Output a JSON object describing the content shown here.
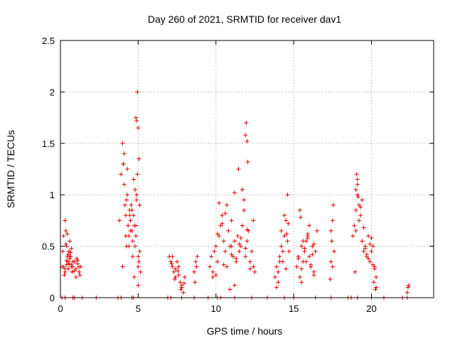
{
  "chart_data": {
    "type": "scatter",
    "title": "Day 260 of 2021, SRMTID for receiver dav1",
    "xlabel": "GPS time / hours",
    "ylabel": "SRMTID / TECUs",
    "xlim": [
      0,
      24
    ],
    "ylim": [
      0,
      2.5
    ],
    "xticks": [
      0,
      5,
      10,
      15,
      20
    ],
    "xtick_labels": [
      "0",
      "5",
      "10",
      "15",
      "20"
    ],
    "yticks": [
      0,
      0.5,
      1,
      1.5,
      2,
      2.5
    ],
    "ytick_labels": [
      "0",
      "0.5",
      "1",
      "1.5",
      "2",
      "2.5"
    ],
    "grid": true,
    "marker": "plus",
    "color": "#e00000",
    "series": [
      {
        "name": "dav1",
        "x": [
          0.1,
          0.15,
          0.2,
          0.3,
          0.35,
          0.4,
          0.45,
          0.5,
          0.55,
          0.6,
          0.65,
          0.7,
          0.75,
          0.8,
          0.3,
          0.4,
          0.5,
          0.6,
          0.7,
          0.25,
          0.35,
          0.45,
          0.55,
          0.65,
          0.2,
          0.3,
          0.4,
          0.5,
          0.6,
          0.7,
          0.8,
          0.9,
          1.0,
          1.1,
          1.2,
          1.3,
          1.0,
          1.1,
          1.2,
          0.9,
          1.05,
          1.25,
          3.8,
          3.9,
          4.0,
          4.05,
          4.1,
          4.15,
          4.2,
          4.25,
          4.3,
          4.35,
          4.4,
          4.45,
          4.5,
          4.55,
          4.6,
          4.65,
          4.7,
          4.75,
          4.8,
          4.85,
          4.9,
          4.95,
          5.0,
          5.05,
          5.1,
          4.0,
          4.2,
          4.4,
          4.6,
          4.8,
          5.0,
          4.1,
          4.3,
          4.5,
          4.7,
          4.9,
          4.05,
          4.25,
          4.45,
          4.65,
          4.85,
          4.85,
          4.9,
          4.95,
          5.0,
          5.05,
          5.1,
          5.15,
          5.0,
          4.75,
          7.0,
          7.1,
          7.2,
          7.3,
          7.4,
          7.5,
          7.6,
          7.7,
          7.8,
          7.9,
          8.0,
          7.2,
          7.4,
          7.6,
          7.8,
          7.15,
          7.35,
          7.55,
          7.75,
          7.95,
          8.6,
          8.7,
          8.8,
          8.65,
          8.75,
          9.6,
          9.7,
          9.8,
          9.9,
          10.0,
          10.1,
          10.2,
          10.3,
          10.4,
          10.5,
          10.6,
          10.7,
          10.8,
          10.9,
          11.0,
          11.1,
          11.2,
          11.3,
          11.4,
          11.5,
          11.6,
          11.7,
          11.8,
          11.9,
          12.0,
          12.1,
          12.2,
          12.3,
          12.4,
          12.5,
          9.8,
          10.1,
          10.4,
          10.7,
          11.0,
          11.3,
          11.6,
          11.9,
          12.2,
          10.0,
          10.5,
          11.0,
          11.5,
          12.0,
          10.2,
          10.6,
          11.2,
          11.8,
          12.4,
          11.45,
          11.9,
          11.95,
          12.0,
          12.05,
          11.7,
          11.2,
          10.9,
          13.8,
          13.9,
          14.0,
          14.1,
          14.2,
          14.3,
          14.4,
          14.5,
          14.6,
          14.7,
          14.0,
          14.2,
          14.4,
          14.6,
          13.9,
          14.1,
          14.3,
          14.5,
          14.55,
          14.65,
          15.2,
          15.3,
          15.4,
          15.5,
          15.6,
          15.7,
          15.8,
          15.9,
          16.0,
          16.1,
          16.2,
          16.3,
          16.4,
          16.5,
          15.4,
          15.6,
          15.8,
          16.0,
          16.2,
          15.3,
          15.5,
          15.7,
          15.9,
          16.1,
          16.3,
          15.5,
          15.9,
          16.3,
          15.45,
          17.4,
          17.45,
          17.5,
          17.55,
          17.6,
          17.4,
          17.5,
          17.35,
          18.8,
          18.9,
          19.0,
          19.1,
          19.2,
          19.3,
          19.4,
          19.5,
          19.6,
          19.7,
          19.8,
          19.9,
          20.0,
          20.1,
          20.2,
          20.3,
          19.0,
          19.2,
          19.4,
          19.6,
          19.8,
          20.0,
          20.2,
          19.1,
          19.3,
          19.5,
          19.7,
          19.9,
          20.1,
          19.0,
          19.05,
          19.1,
          19.15,
          18.95,
          20.15,
          20.25,
          20.3,
          22.3,
          22.35,
          22.4
        ],
        "y": [
          0.3,
          0.45,
          0.6,
          0.75,
          0.65,
          0.5,
          0.4,
          0.35,
          0.45,
          0.55,
          0.4,
          0.3,
          0.25,
          0.35,
          0.28,
          0.32,
          0.42,
          0.38,
          0.48,
          0.22,
          0.52,
          0.62,
          0.33,
          0.44,
          0.3,
          0.25,
          0.36,
          0.28,
          0.4,
          0.32,
          0.3,
          0.35,
          0.28,
          0.33,
          0.25,
          0.3,
          0.2,
          0.36,
          0.3,
          0.26,
          0.38,
          0.22,
          0.75,
          1.2,
          1.5,
          1.3,
          1.1,
          0.9,
          0.8,
          0.95,
          1.0,
          0.7,
          0.6,
          0.85,
          0.75,
          0.9,
          0.65,
          0.55,
          0.8,
          0.7,
          0.5,
          0.6,
          1.0,
          1.2,
          0.4,
          0.35,
          0.45,
          0.3,
          0.6,
          0.5,
          0.85,
          1.05,
          0.3,
          1.4,
          1.25,
          0.65,
          1.15,
          0.95,
          1.3,
          0.5,
          0.8,
          0.4,
          0.7,
          1.75,
          1.72,
          2.0,
          1.65,
          1.35,
          0.9,
          0.25,
          0.12,
          0.2,
          0.4,
          0.35,
          0.3,
          0.25,
          0.2,
          0.35,
          0.3,
          0.15,
          0.1,
          0.05,
          0.2,
          0.4,
          0.28,
          0.22,
          0.12,
          0.33,
          0.18,
          0.26,
          0.08,
          0.14,
          0.25,
          0.35,
          0.4,
          0.15,
          0.3,
          0.3,
          0.4,
          0.25,
          0.45,
          0.5,
          0.35,
          0.6,
          0.7,
          0.8,
          0.55,
          0.45,
          0.9,
          0.65,
          0.5,
          0.75,
          0.4,
          0.55,
          0.35,
          0.6,
          0.45,
          0.5,
          0.7,
          0.85,
          0.4,
          0.55,
          0.65,
          0.35,
          0.45,
          0.3,
          0.25,
          0.2,
          0.62,
          0.72,
          0.3,
          0.5,
          0.38,
          0.58,
          0.48,
          0.28,
          0.22,
          0.32,
          0.42,
          0.52,
          0.66,
          0.92,
          0.82,
          1.02,
          0.95,
          0.75,
          1.25,
          1.58,
          1.7,
          1.52,
          1.32,
          1.05,
          0.12,
          0.08,
          0.2,
          0.3,
          0.15,
          0.4,
          0.5,
          0.35,
          0.6,
          0.75,
          0.55,
          0.45,
          0.25,
          0.65,
          0.8,
          1.0,
          0.1,
          0.35,
          0.45,
          0.28,
          0.62,
          0.72,
          0.3,
          0.4,
          0.85,
          0.5,
          0.35,
          0.45,
          0.55,
          0.6,
          0.4,
          0.3,
          0.5,
          0.25,
          0.45,
          0.65,
          0.2,
          0.55,
          0.35,
          0.7,
          0.42,
          0.38,
          0.28,
          0.48,
          0.58,
          0.32,
          0.52,
          0.15,
          0.62,
          0.22,
          0.78,
          0.35,
          0.55,
          0.75,
          0.9,
          0.45,
          0.65,
          0.3,
          0.18,
          0.6,
          0.7,
          0.85,
          1.0,
          0.9,
          0.8,
          0.55,
          0.45,
          0.5,
          0.4,
          0.6,
          0.35,
          0.45,
          0.5,
          0.3,
          0.2,
          0.65,
          0.75,
          0.95,
          0.48,
          0.38,
          0.58,
          0.28,
          1.1,
          0.88,
          0.68,
          0.42,
          0.52,
          0.32,
          1.05,
          1.2,
          1.15,
          0.98,
          0.25,
          0.15,
          0.08,
          0.1,
          0.05,
          0.1,
          0.12
        ]
      }
    ],
    "zero_markers_x": [
      0.1,
      0.3,
      0.8,
      0.9,
      1.4,
      2.3,
      3.7,
      3.9,
      4.6,
      4.7,
      6.9,
      7.1,
      7.8,
      8.6,
      9.5,
      10.1,
      10.3,
      11.2,
      12.3,
      13.3,
      14.4,
      15.0,
      16.4,
      17.4,
      18.5,
      18.7,
      19.1,
      20.0,
      20.8,
      22.0,
      22.3
    ]
  }
}
